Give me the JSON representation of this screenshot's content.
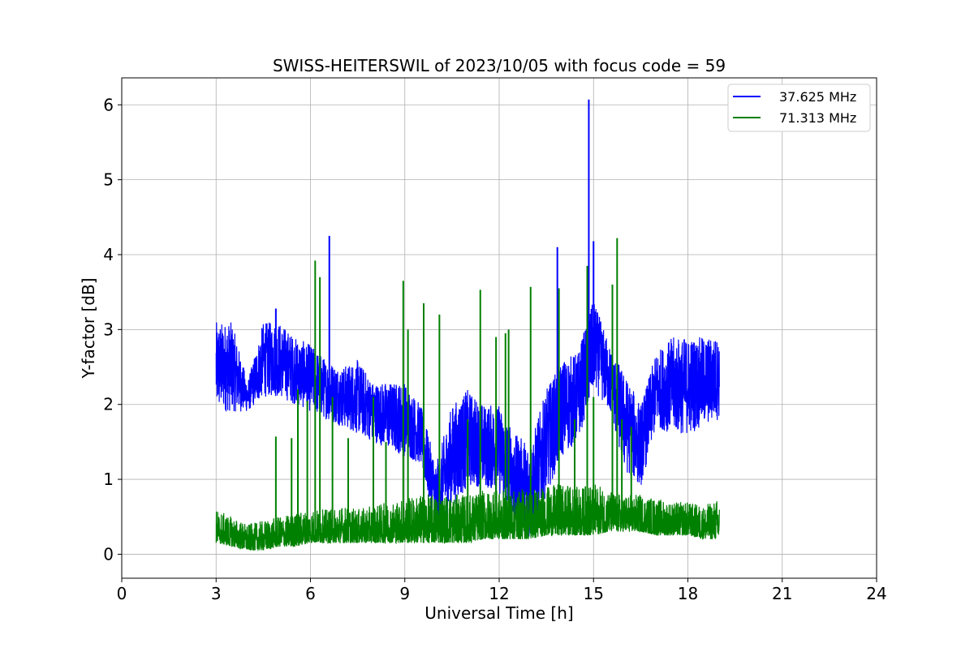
{
  "chart_data": {
    "type": "line",
    "title": "SWISS-HEITERSWIL of 2023/10/05 with focus code = 59",
    "xlabel": "Universal Time [h]",
    "ylabel": "Y-factor [dB]",
    "xlim": [
      0,
      24
    ],
    "ylim": [
      -0.32,
      6.36
    ],
    "xticks": [
      0,
      3,
      6,
      9,
      12,
      15,
      18,
      21,
      24
    ],
    "yticks": [
      0,
      1,
      2,
      3,
      4,
      5,
      6
    ],
    "grid": true,
    "legend_position": "top-right",
    "series": [
      {
        "name": "37.625 MHz",
        "color": "#0000ff",
        "x": [
          3.0,
          3.5,
          4.0,
          4.5,
          5.0,
          5.5,
          6.0,
          6.5,
          7.0,
          7.5,
          8.0,
          8.5,
          9.0,
          9.5,
          10.0,
          10.5,
          11.0,
          11.5,
          12.0,
          12.5,
          13.0,
          13.5,
          14.0,
          14.5,
          15.0,
          15.5,
          16.0,
          16.5,
          17.0,
          17.5,
          18.0,
          18.5,
          19.0
        ],
        "upper": [
          3.1,
          3.1,
          2.3,
          3.1,
          3.1,
          2.9,
          2.8,
          2.6,
          2.5,
          2.6,
          2.3,
          2.3,
          2.3,
          2.0,
          1.2,
          2.0,
          2.2,
          2.0,
          2.0,
          1.6,
          1.5,
          2.2,
          2.6,
          2.7,
          3.4,
          2.8,
          2.4,
          2.0,
          2.7,
          2.9,
          2.9,
          2.9,
          2.9
        ],
        "lower": [
          1.9,
          1.9,
          1.9,
          2.1,
          2.1,
          2.0,
          1.9,
          1.8,
          1.7,
          1.6,
          1.5,
          1.4,
          1.3,
          1.2,
          0.3,
          0.6,
          0.9,
          0.9,
          0.8,
          0.4,
          0.2,
          0.8,
          1.3,
          1.5,
          2.2,
          1.9,
          1.1,
          0.9,
          1.7,
          1.6,
          1.6,
          1.7,
          1.8
        ],
        "spikes": [
          {
            "x": 6.6,
            "y": 4.25
          },
          {
            "x": 13.85,
            "y": 4.1
          },
          {
            "x": 14.85,
            "y": 6.07
          },
          {
            "x": 15.0,
            "y": 4.18
          },
          {
            "x": 4.9,
            "y": 3.28
          }
        ]
      },
      {
        "name": "71.313 MHz",
        "color": "#008000",
        "x": [
          3.0,
          3.5,
          4.0,
          4.5,
          5.0,
          5.5,
          6.0,
          6.5,
          7.0,
          7.5,
          8.0,
          8.5,
          9.0,
          9.5,
          10.0,
          10.5,
          11.0,
          11.5,
          12.0,
          12.5,
          13.0,
          13.5,
          14.0,
          14.5,
          15.0,
          15.5,
          16.0,
          16.5,
          17.0,
          17.5,
          18.0,
          18.5,
          19.0
        ],
        "upper": [
          0.6,
          0.5,
          0.4,
          0.45,
          0.5,
          0.55,
          0.6,
          0.6,
          0.65,
          0.6,
          0.65,
          0.7,
          0.75,
          0.8,
          0.8,
          0.8,
          0.8,
          0.85,
          0.85,
          0.85,
          0.9,
          0.9,
          0.95,
          0.9,
          0.95,
          0.85,
          0.8,
          0.8,
          0.75,
          0.7,
          0.7,
          0.65,
          0.75
        ],
        "lower": [
          0.15,
          0.1,
          0.05,
          0.05,
          0.1,
          0.1,
          0.15,
          0.15,
          0.15,
          0.15,
          0.15,
          0.15,
          0.15,
          0.15,
          0.15,
          0.15,
          0.15,
          0.2,
          0.2,
          0.2,
          0.2,
          0.25,
          0.25,
          0.25,
          0.25,
          0.3,
          0.3,
          0.3,
          0.25,
          0.25,
          0.25,
          0.2,
          0.2
        ],
        "spikes": [
          {
            "x": 4.9,
            "y": 1.57
          },
          {
            "x": 5.4,
            "y": 1.55
          },
          {
            "x": 5.6,
            "y": 2.2
          },
          {
            "x": 5.9,
            "y": 2.05
          },
          {
            "x": 6.15,
            "y": 3.92
          },
          {
            "x": 6.3,
            "y": 3.7
          },
          {
            "x": 6.7,
            "y": 2.1
          },
          {
            "x": 7.2,
            "y": 1.55
          },
          {
            "x": 8.0,
            "y": 2.1
          },
          {
            "x": 8.4,
            "y": 1.5
          },
          {
            "x": 8.95,
            "y": 3.65
          },
          {
            "x": 9.1,
            "y": 3.0
          },
          {
            "x": 9.6,
            "y": 3.35
          },
          {
            "x": 10.1,
            "y": 3.2
          },
          {
            "x": 11.0,
            "y": 1.8
          },
          {
            "x": 11.4,
            "y": 3.53
          },
          {
            "x": 11.9,
            "y": 2.9
          },
          {
            "x": 12.2,
            "y": 2.95
          },
          {
            "x": 12.3,
            "y": 3.0
          },
          {
            "x": 13.0,
            "y": 3.57
          },
          {
            "x": 13.9,
            "y": 3.55
          },
          {
            "x": 14.4,
            "y": 1.8
          },
          {
            "x": 14.8,
            "y": 3.85
          },
          {
            "x": 15.0,
            "y": 2.1
          },
          {
            "x": 15.6,
            "y": 3.6
          },
          {
            "x": 15.75,
            "y": 4.22
          },
          {
            "x": 15.9,
            "y": 1.8
          },
          {
            "x": 16.2,
            "y": 1.7
          }
        ]
      }
    ]
  }
}
